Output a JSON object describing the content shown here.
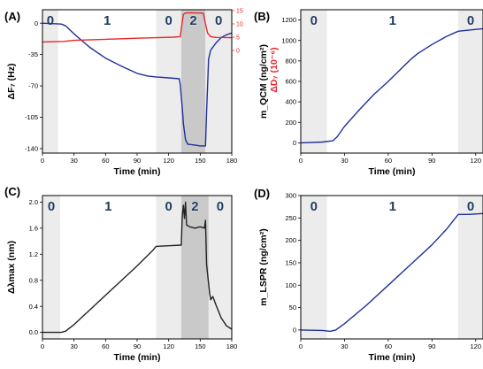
{
  "chart_data": [
    {
      "panel": "(A)",
      "type": "line",
      "xlabel": "Time (min)",
      "ylabel": "ΔF₇ (Hz)",
      "y2label": "ΔD₇ (10⁻⁶)",
      "xlim": [
        0,
        180
      ],
      "ylim": [
        -145,
        15
      ],
      "y2lim": [
        0,
        15
      ],
      "xticks": [
        0,
        30,
        60,
        90,
        120,
        150,
        180
      ],
      "yticks": [
        0,
        -35,
        -70,
        -105,
        -140
      ],
      "y2ticks": [
        0,
        5,
        10,
        15
      ],
      "phases": [
        {
          "label": "0",
          "x0": 0,
          "x1": 15,
          "shade": "#ececec"
        },
        {
          "label": "1",
          "x0": 15,
          "x1": 108,
          "shade": "#ffffff"
        },
        {
          "label": "0",
          "x0": 108,
          "x1": 132,
          "shade": "#ececec"
        },
        {
          "label": "2",
          "x0": 132,
          "x1": 155,
          "shade": "#c9c9c9"
        },
        {
          "label": "0",
          "x0": 155,
          "x1": 180,
          "shade": "#ececec"
        }
      ],
      "series": [
        {
          "axis": "left",
          "color": "#1f2f9c",
          "x": [
            0,
            18,
            22,
            30,
            45,
            60,
            75,
            90,
            100,
            108,
            120,
            130,
            131,
            133,
            134,
            136,
            138,
            145,
            150,
            155,
            156,
            158,
            160,
            165,
            170,
            175,
            180
          ],
          "y": [
            0,
            -1,
            -3,
            -12,
            -27,
            -39,
            -48,
            -56,
            -59,
            -60,
            -61,
            -62,
            -68,
            -95,
            -112,
            -130,
            -135,
            -136,
            -137,
            -137,
            -100,
            -40,
            -30,
            -22,
            -16,
            -13,
            -11
          ]
        },
        {
          "axis": "right",
          "color": "#e8262b",
          "x": [
            0,
            20,
            30,
            60,
            90,
            108,
            125,
            131,
            132,
            134,
            136,
            140,
            150,
            153,
            155,
            157,
            160,
            165,
            180
          ],
          "y": [
            3.2,
            3.4,
            3.8,
            4.2,
            4.6,
            4.8,
            5.0,
            5.2,
            8,
            13.6,
            14.1,
            14.2,
            14.1,
            14.0,
            10,
            6.5,
            5.2,
            4.9,
            4.8
          ]
        }
      ]
    },
    {
      "panel": "(B)",
      "type": "line",
      "xlabel": "Time (min)",
      "ylabel": "m_QCM (ng/cm²)",
      "xlim": [
        0,
        125
      ],
      "ylim": [
        -100,
        1300
      ],
      "xticks": [
        0,
        30,
        60,
        90,
        120
      ],
      "yticks": [
        0,
        200,
        400,
        600,
        800,
        1000,
        1200
      ],
      "phases": [
        {
          "label": "0",
          "x0": 0,
          "x1": 18,
          "shade": "#ececec"
        },
        {
          "label": "1",
          "x0": 18,
          "x1": 108,
          "shade": "#ffffff"
        },
        {
          "label": "0",
          "x0": 108,
          "x1": 125,
          "shade": "#ececec"
        }
      ],
      "series": [
        {
          "color": "#1f2f9c",
          "x": [
            0,
            15,
            22,
            25,
            30,
            40,
            50,
            60,
            70,
            75,
            80,
            90,
            100,
            108,
            115,
            125
          ],
          "y": [
            0,
            8,
            20,
            60,
            160,
            320,
            470,
            600,
            740,
            810,
            870,
            960,
            1040,
            1090,
            1100,
            1115
          ]
        }
      ]
    },
    {
      "panel": "(C)",
      "type": "line",
      "xlabel": "Time (min)",
      "ylabel": "Δλmax (nm)",
      "xlim": [
        0,
        180
      ],
      "ylim": [
        -0.1,
        2.1
      ],
      "xticks": [
        0,
        30,
        60,
        90,
        120,
        150,
        180
      ],
      "yticks": [
        0.0,
        0.4,
        0.8,
        1.2,
        1.6,
        2.0
      ],
      "ytick_labels": [
        "0.0",
        "0.4",
        "0.8",
        "1.2",
        "1.6",
        "2.0"
      ],
      "phases": [
        {
          "label": "0",
          "x0": 0,
          "x1": 17,
          "shade": "#ececec"
        },
        {
          "label": "1",
          "x0": 17,
          "x1": 108,
          "shade": "#ffffff"
        },
        {
          "label": "0",
          "x0": 108,
          "x1": 132,
          "shade": "#ececec"
        },
        {
          "label": "2",
          "x0": 132,
          "x1": 158,
          "shade": "#c9c9c9"
        },
        {
          "label": "0",
          "x0": 158,
          "x1": 180,
          "shade": "#ececec"
        }
      ],
      "series": [
        {
          "color": "#222222",
          "x": [
            0,
            18,
            22,
            30,
            50,
            70,
            90,
            105,
            108,
            120,
            132,
            133,
            134,
            135,
            136,
            137,
            140,
            145,
            150,
            154,
            155,
            156,
            158,
            159,
            160,
            162,
            165,
            170,
            175,
            180
          ],
          "y": [
            0,
            0,
            0.02,
            0.12,
            0.42,
            0.72,
            1.02,
            1.26,
            1.32,
            1.33,
            1.34,
            1.8,
            1.95,
            1.75,
            2.0,
            1.65,
            1.62,
            1.6,
            1.62,
            1.6,
            1.72,
            1.05,
            0.75,
            0.6,
            0.5,
            0.55,
            0.42,
            0.22,
            0.1,
            0.05
          ]
        }
      ]
    },
    {
      "panel": "(D)",
      "type": "line",
      "xlabel": "Time (min)",
      "ylabel": "m_LSPR (ng/cm²)",
      "xlim": [
        0,
        125
      ],
      "ylim": [
        -20,
        300
      ],
      "xticks": [
        0,
        30,
        60,
        90,
        120
      ],
      "yticks": [
        0,
        50,
        100,
        150,
        200,
        250,
        300
      ],
      "phases": [
        {
          "label": "0",
          "x0": 0,
          "x1": 18,
          "shade": "#ececec"
        },
        {
          "label": "1",
          "x0": 18,
          "x1": 108,
          "shade": "#ffffff"
        },
        {
          "label": "0",
          "x0": 108,
          "x1": 125,
          "shade": "#ececec"
        }
      ],
      "series": [
        {
          "color": "#1f2f9c",
          "x": [
            0,
            15,
            20,
            24,
            30,
            45,
            60,
            75,
            90,
            100,
            108,
            115,
            125
          ],
          "y": [
            0,
            -1,
            -3,
            0,
            14,
            55,
            100,
            145,
            190,
            225,
            258,
            258,
            260
          ]
        }
      ]
    }
  ]
}
